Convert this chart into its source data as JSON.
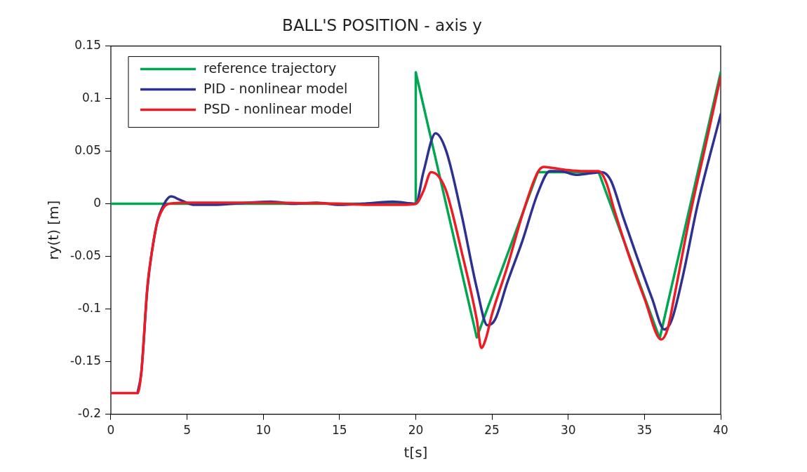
{
  "chart_data": {
    "type": "line",
    "title": "BALL'S POSITION - axis y",
    "xlabel": "t[s]",
    "ylabel": "ry(t) [m]",
    "xlim": [
      0,
      40
    ],
    "xticks": [
      0,
      5,
      10,
      15,
      20,
      25,
      30,
      35,
      40
    ],
    "ylim": [
      -0.2,
      0.15
    ],
    "yticks": [
      -0.2,
      -0.15,
      -0.1,
      -0.05,
      0,
      0.05,
      0.1,
      0.15
    ],
    "grid": false,
    "legend": "top left",
    "marker": "none",
    "line_style": "solid",
    "series": [
      {
        "name": "reference trajectory",
        "color": "#00a651",
        "x": [
          0,
          20,
          20,
          24,
          28,
          32,
          36,
          40
        ],
        "values": [
          0,
          0,
          0.125,
          -0.127,
          0.03,
          0.03,
          -0.128,
          0.125
        ]
      },
      {
        "name": "PID - nonlinear model",
        "color": "#2e3192",
        "x": [
          1.75,
          2.0,
          2.4,
          3.0,
          3.5,
          3.95,
          4.5,
          5.5,
          6.5,
          8,
          10.5,
          12,
          13.5,
          15,
          16.5,
          18.5,
          20,
          20.5,
          21.3,
          22,
          23,
          24,
          24.7,
          25.2,
          26,
          27,
          28,
          28.8,
          29.5,
          30.5,
          31.5,
          32.2,
          32.8,
          33.6,
          34.5,
          35.5,
          36.3,
          36.8,
          37.5,
          38.5,
          40
        ],
        "values": [
          -0.18,
          -0.16,
          -0.08,
          -0.02,
          0.0,
          0.007,
          0.004,
          -0.001,
          -0.001,
          0,
          0.002,
          0,
          0.001,
          -0.001,
          0,
          0.002,
          0,
          0.03,
          0.067,
          0.05,
          -0.01,
          -0.08,
          -0.1155,
          -0.11,
          -0.075,
          -0.035,
          0.01,
          0.031,
          0.031,
          0.0275,
          0.029,
          0.03,
          0.022,
          -0.0125,
          -0.05,
          -0.09,
          -0.1195,
          -0.11,
          -0.07,
          0.0,
          0.085
        ]
      },
      {
        "name": "PSD - nonlinear model",
        "color": "#ed1c24",
        "x": [
          0,
          1.75,
          2.0,
          2.4,
          2.7,
          3.0,
          3.4,
          3.8,
          5,
          10,
          15,
          17,
          19,
          20,
          20.5,
          21.0,
          21.5,
          22,
          23,
          24,
          24.3,
          24.6,
          25,
          26,
          27,
          28,
          28.4,
          29,
          30,
          31,
          32,
          32.5,
          33,
          34,
          35,
          36.1,
          36.5,
          37,
          38,
          39,
          40
        ],
        "values": [
          -0.18,
          -0.18,
          -0.16,
          -0.078,
          -0.045,
          -0.02,
          -0.005,
          0,
          0.001,
          0.001,
          0,
          -0.001,
          -0.001,
          0,
          0.012,
          0.03,
          0.026,
          0.012,
          -0.045,
          -0.11,
          -0.137,
          -0.128,
          -0.105,
          -0.06,
          -0.01,
          0.03,
          0.035,
          0.034,
          0.032,
          0.031,
          0.031,
          0.02,
          -0.005,
          -0.05,
          -0.09,
          -0.129,
          -0.12,
          -0.085,
          -0.01,
          0.055,
          0.121
        ]
      }
    ]
  }
}
